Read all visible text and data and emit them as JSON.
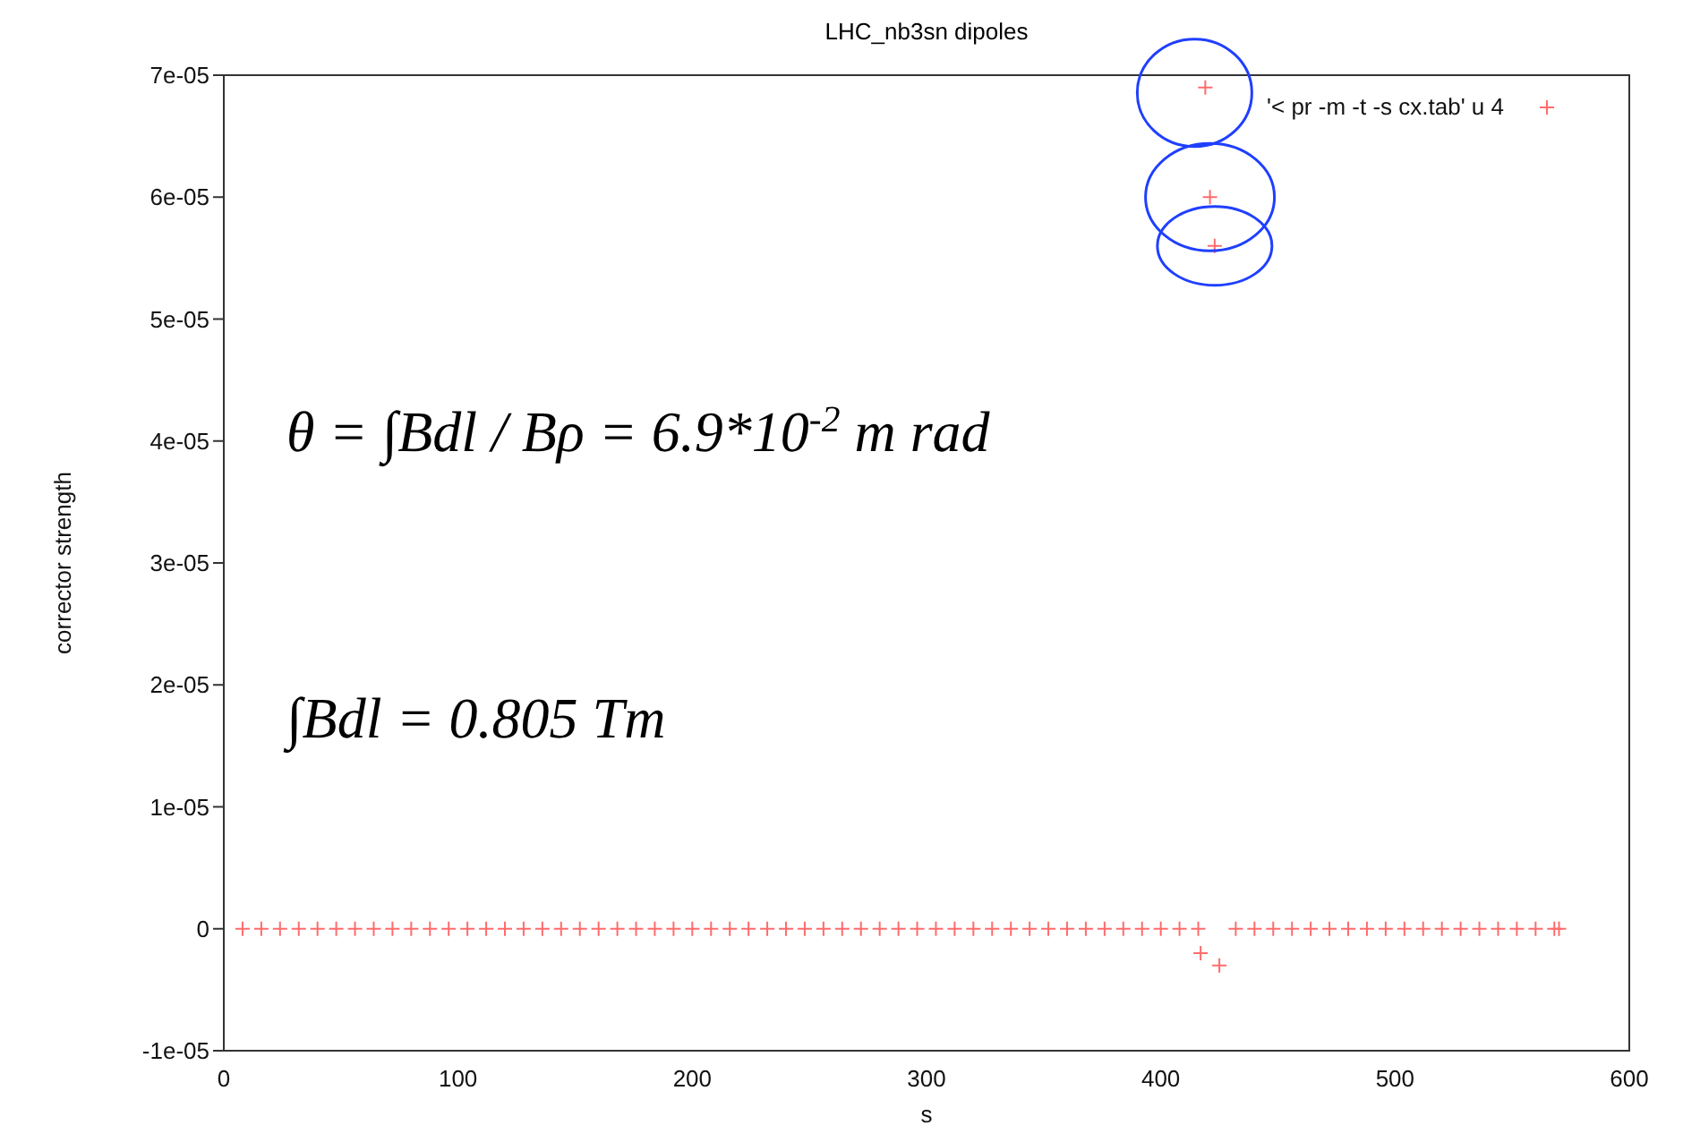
{
  "chart_data": {
    "type": "scatter",
    "title": "LHC_nb3sn dipoles",
    "xlabel": "s",
    "ylabel": "corrector strength",
    "annotations": [
      "θ = ∫Bdl / Bρ = 6.9*10$^{-2}$ m rad",
      "∫Bdl = 0.805 Tm"
    ],
    "x": [
      8,
      16,
      24,
      32,
      40,
      48,
      56,
      64,
      72,
      80,
      88,
      96,
      104,
      112,
      120,
      128,
      136,
      144,
      152,
      160,
      168,
      176,
      184,
      192,
      200,
      208,
      216,
      224,
      232,
      240,
      248,
      256,
      264,
      272,
      280,
      288,
      296,
      304,
      312,
      320,
      328,
      336,
      344,
      352,
      360,
      368,
      376,
      384,
      392,
      400,
      408,
      416,
      417,
      419,
      421,
      423,
      425,
      432,
      440,
      448,
      456,
      464,
      472,
      480,
      488,
      496,
      504,
      512,
      520,
      528,
      536,
      544,
      552,
      560,
      568,
      570
    ],
    "series": [
      {
        "name": "'< pr -m -t -s cx.tab' u 4",
        "color": "#ff6b6b",
        "values": [
          0,
          0,
          0,
          0,
          0,
          0,
          0,
          0,
          0,
          0,
          0,
          0,
          0,
          0,
          0,
          0,
          0,
          0,
          0,
          0,
          0,
          0,
          0,
          0,
          0,
          0,
          0,
          0,
          0,
          0,
          0,
          0,
          0,
          0,
          0,
          0,
          0,
          0,
          0,
          0,
          0,
          0,
          0,
          0,
          0,
          0,
          0,
          0,
          0,
          0,
          0,
          0,
          -2e-06,
          6.9e-05,
          6e-05,
          5.6e-05,
          -3e-06,
          0,
          0,
          0,
          0,
          0,
          0,
          0,
          0,
          0,
          0,
          0,
          0,
          0,
          0,
          0,
          0,
          0,
          0,
          0
        ]
      }
    ],
    "xlim": [
      0,
      600
    ],
    "xticks": [
      0,
      100,
      200,
      300,
      400,
      500,
      600
    ],
    "ylim": [
      -1e-05,
      7e-05
    ],
    "yticks": [
      {
        "value": -1e-05,
        "label": "-1e-05"
      },
      {
        "value": 0,
        "label": "0"
      },
      {
        "value": 1e-05,
        "label": "1e-05"
      },
      {
        "value": 2e-05,
        "label": "2e-05"
      },
      {
        "value": 3e-05,
        "label": "3e-05"
      },
      {
        "value": 4e-05,
        "label": "4e-05"
      },
      {
        "value": 5e-05,
        "label": "5e-05"
      },
      {
        "value": 6e-05,
        "label": "6e-05"
      },
      {
        "value": 7e-05,
        "label": "7e-05"
      }
    ],
    "grid": false,
    "legend": "top right",
    "marker": "cross"
  }
}
